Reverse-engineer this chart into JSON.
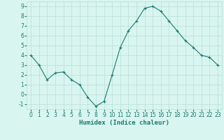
{
  "x": [
    0,
    1,
    2,
    3,
    4,
    5,
    6,
    7,
    8,
    9,
    10,
    11,
    12,
    13,
    14,
    15,
    16,
    17,
    18,
    19,
    20,
    21,
    22,
    23
  ],
  "y": [
    4.0,
    3.0,
    1.5,
    2.2,
    2.3,
    1.5,
    1.0,
    -0.3,
    -1.2,
    -0.7,
    2.0,
    4.8,
    6.5,
    7.5,
    8.8,
    9.0,
    8.5,
    7.5,
    6.5,
    5.5,
    4.8,
    4.0,
    3.8,
    3.0
  ],
  "line_color": "#1a7a6e",
  "marker": "+",
  "marker_color": "#1a7a6e",
  "bg_color": "#d9f5f0",
  "grid_color": "#b8ddd8",
  "xlabel": "Humidex (Indice chaleur)",
  "xlabel_color": "#1a7a6e",
  "tick_color": "#1a7a6e",
  "ylim": [
    -1.5,
    9.5
  ],
  "xlim": [
    -0.5,
    23.5
  ],
  "yticks": [
    -1,
    0,
    1,
    2,
    3,
    4,
    5,
    6,
    7,
    8,
    9
  ],
  "xticks": [
    0,
    1,
    2,
    3,
    4,
    5,
    6,
    7,
    8,
    9,
    10,
    11,
    12,
    13,
    14,
    15,
    16,
    17,
    18,
    19,
    20,
    21,
    22,
    23
  ],
  "tick_fontsize": 5.5,
  "xlabel_fontsize": 6.5,
  "linewidth": 0.8,
  "markersize": 3.5
}
